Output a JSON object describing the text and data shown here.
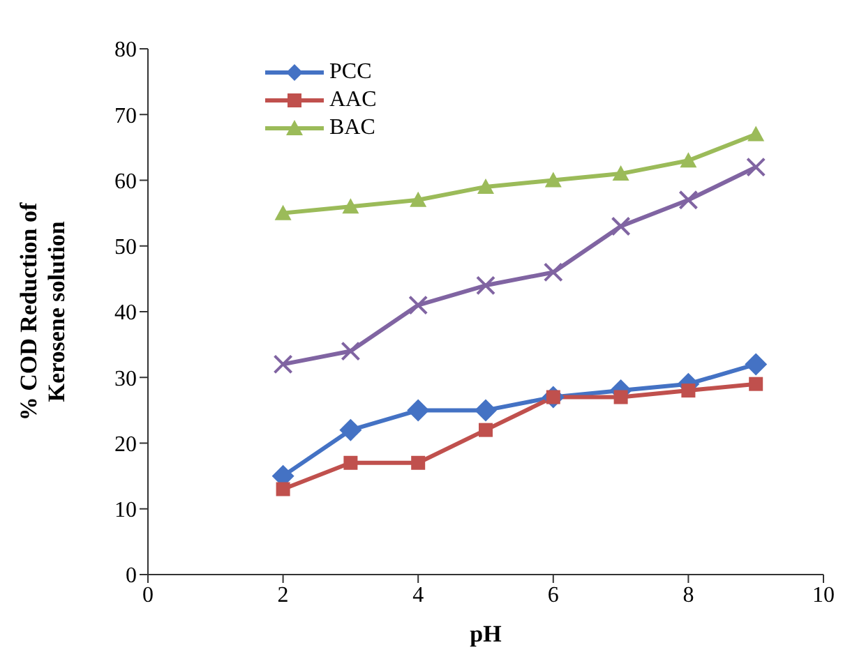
{
  "chart_data": {
    "type": "line",
    "xlabel": "pH",
    "ylabel": "% COD Reduction of Kerosene solution",
    "x": [
      2,
      3,
      4,
      5,
      6,
      7,
      8,
      9
    ],
    "series": [
      {
        "name": "PCC",
        "color": "#4472c4",
        "marker": "diamond",
        "values": [
          15,
          22,
          25,
          25,
          27,
          28,
          29,
          32
        ]
      },
      {
        "name": "AAC",
        "color": "#c0504d",
        "marker": "square",
        "values": [
          13,
          17,
          17,
          22,
          27,
          27,
          28,
          29
        ]
      },
      {
        "name": "BAC",
        "color": "#9bbb59",
        "marker": "triangle",
        "values": [
          55,
          56,
          57,
          59,
          60,
          61,
          63,
          67
        ]
      },
      {
        "color": "#8064a2",
        "marker": "cross",
        "values": [
          32,
          34,
          41,
          44,
          46,
          53,
          57,
          62
        ]
      }
    ],
    "xlim": [
      0,
      10
    ],
    "xticks": [
      0,
      2,
      4,
      6,
      8,
      10
    ],
    "ylim": [
      0,
      80
    ],
    "yticks": [
      0,
      10,
      20,
      30,
      40,
      50,
      60,
      70,
      80
    ],
    "grid": false,
    "legend": "top left",
    "line_style": "solid"
  }
}
